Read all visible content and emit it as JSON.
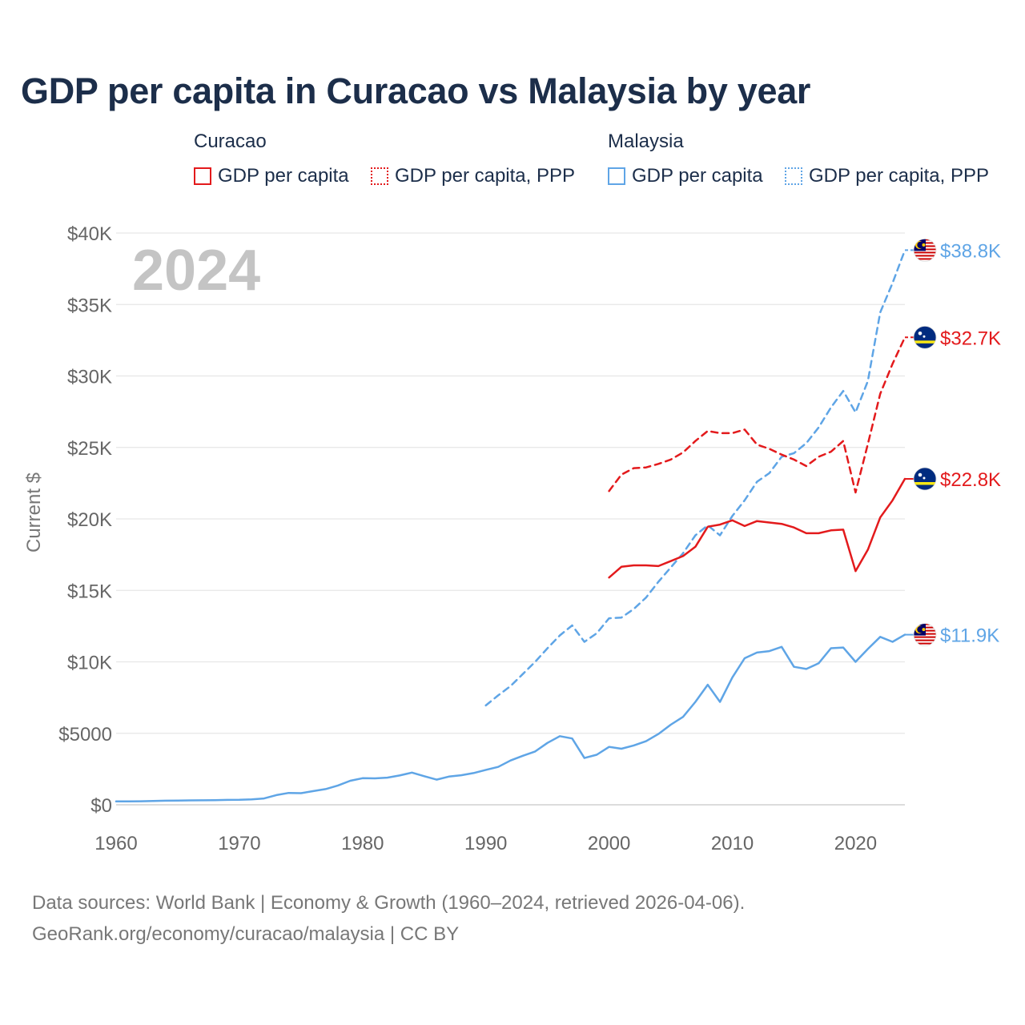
{
  "title": "GDP per capita in Curacao vs Malaysia by year",
  "legend": {
    "groups": [
      {
        "name": "Curacao",
        "items": [
          "GDP per capita",
          "GDP per capita, PPP"
        ]
      },
      {
        "name": "Malaysia",
        "items": [
          "GDP per capita",
          "GDP per capita, PPP"
        ]
      }
    ]
  },
  "colors": {
    "curacao": "#e31a1c",
    "malaysia": "#5fa5e6",
    "grid": "#e6e6e6",
    "axis_text": "#666666",
    "year_watermark": "#c4c4c4"
  },
  "year_label": "2024",
  "source": {
    "line1": "Data sources: World Bank | Economy & Growth (1960–2024, retrieved 2026-04-06).",
    "line2": "GeoRank.org/economy/curacao/malaysia | CC BY"
  },
  "chart_data": {
    "type": "line",
    "title": "GDP per capita in Curacao vs Malaysia by year",
    "xlabel": "",
    "ylabel": "Current $",
    "xlim": [
      1960,
      2024
    ],
    "ylim": [
      0,
      40000
    ],
    "x_ticks": [
      1960,
      1970,
      1980,
      1990,
      2000,
      2010,
      2020
    ],
    "x_tick_labels": [
      "1960",
      "1970",
      "1980",
      "1990",
      "2000",
      "2010",
      "2020"
    ],
    "y_ticks": [
      0,
      5000,
      10000,
      15000,
      20000,
      25000,
      30000,
      35000,
      40000
    ],
    "y_tick_labels": [
      "$0",
      "$5000",
      "$10K",
      "$15K",
      "$20K",
      "$25K",
      "$30K",
      "$35K",
      "$40K"
    ],
    "series": [
      {
        "name": "Malaysia GDP per capita",
        "country": "malaysia",
        "style": "solid",
        "end_label": "$11.9K",
        "x": [
          1960,
          1961,
          1962,
          1963,
          1964,
          1965,
          1966,
          1967,
          1968,
          1969,
          1970,
          1971,
          1972,
          1973,
          1974,
          1975,
          1976,
          1977,
          1978,
          1979,
          1980,
          1981,
          1982,
          1983,
          1984,
          1985,
          1986,
          1987,
          1988,
          1989,
          1990,
          1991,
          1992,
          1993,
          1994,
          1995,
          1996,
          1997,
          1998,
          1999,
          2000,
          2001,
          2002,
          2003,
          2004,
          2005,
          2006,
          2007,
          2008,
          2009,
          2010,
          2011,
          2012,
          2013,
          2014,
          2015,
          2016,
          2017,
          2018,
          2019,
          2020,
          2021,
          2022,
          2023,
          2024
        ],
        "values": [
          235,
          235,
          245,
          270,
          285,
          290,
          310,
          315,
          320,
          340,
          350,
          380,
          440,
          680,
          830,
          810,
          960,
          1100,
          1350,
          1680,
          1860,
          1850,
          1900,
          2050,
          2250,
          2000,
          1760,
          1970,
          2070,
          2220,
          2440,
          2650,
          3100,
          3430,
          3730,
          4330,
          4800,
          4640,
          3270,
          3500,
          4050,
          3920,
          4150,
          4450,
          4950,
          5600,
          6150,
          7200,
          8400,
          7200,
          8900,
          10250,
          10650,
          10750,
          11050,
          9650,
          9500,
          9900,
          10950,
          11000,
          10000,
          10900,
          11750,
          11400,
          11900
        ]
      },
      {
        "name": "Malaysia GDP per capita, PPP",
        "country": "malaysia",
        "style": "dashed",
        "end_label": "$38.8K",
        "x": [
          1990,
          1991,
          1992,
          1993,
          1994,
          1995,
          1996,
          1997,
          1998,
          1999,
          2000,
          2001,
          2002,
          2003,
          2004,
          2005,
          2006,
          2007,
          2008,
          2009,
          2010,
          2011,
          2012,
          2013,
          2014,
          2015,
          2016,
          2017,
          2018,
          2019,
          2020,
          2021,
          2022,
          2023,
          2024
        ],
        "values": [
          6950,
          7650,
          8300,
          9150,
          10000,
          10950,
          11850,
          12550,
          11400,
          12000,
          13050,
          13100,
          13700,
          14500,
          15600,
          16600,
          17600,
          18850,
          19550,
          18850,
          20200,
          21300,
          22600,
          23200,
          24350,
          24600,
          25300,
          26400,
          27800,
          28950,
          27450,
          29650,
          34450,
          36500,
          38800
        ]
      },
      {
        "name": "Curacao GDP per capita",
        "country": "curacao",
        "style": "solid",
        "end_label": "$22.8K",
        "x": [
          2000,
          2001,
          2002,
          2003,
          2004,
          2005,
          2006,
          2007,
          2008,
          2009,
          2010,
          2011,
          2012,
          2013,
          2014,
          2015,
          2016,
          2017,
          2018,
          2019,
          2020,
          2021,
          2022,
          2023,
          2024
        ],
        "values": [
          15900,
          16650,
          16750,
          16750,
          16700,
          17050,
          17400,
          18050,
          19450,
          19600,
          19900,
          19500,
          19850,
          19750,
          19650,
          19400,
          19000,
          19000,
          19200,
          19250,
          16350,
          17850,
          20100,
          21300,
          22800
        ]
      },
      {
        "name": "Curacao GDP per capita, PPP",
        "country": "curacao",
        "style": "dashed",
        "end_label": "$32.7K",
        "x": [
          2000,
          2001,
          2002,
          2003,
          2004,
          2005,
          2006,
          2007,
          2008,
          2009,
          2010,
          2011,
          2012,
          2013,
          2014,
          2015,
          2016,
          2017,
          2018,
          2019,
          2020,
          2021,
          2022,
          2023,
          2024
        ],
        "values": [
          21950,
          23100,
          23550,
          23600,
          23850,
          24150,
          24650,
          25450,
          26150,
          26000,
          26000,
          26250,
          25200,
          24900,
          24500,
          24150,
          23700,
          24350,
          24700,
          25450,
          21850,
          25250,
          28750,
          30850,
          32700
        ]
      }
    ]
  }
}
